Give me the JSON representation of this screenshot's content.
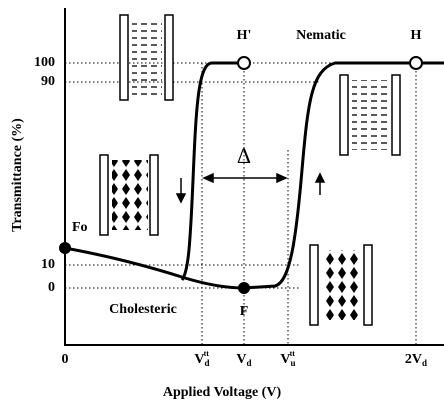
{
  "axes": {
    "y_label": "Transmittance (%)",
    "x_label": "Applied Voltage (V)",
    "y_ticks": [
      "100",
      "90",
      "10",
      "0"
    ],
    "x_ticks": [
      {
        "base": "0"
      },
      {
        "base": "V",
        "sub": "d",
        "sup": "tt"
      },
      {
        "base": "V",
        "sub": "d"
      },
      {
        "base": "V",
        "sub": "u",
        "sup": "tt"
      },
      {
        "base": "2V",
        "sub": "d"
      }
    ]
  },
  "labels": {
    "fo": "Fo",
    "f": "F",
    "h_prime": "H'",
    "h": "H",
    "nematic": "Nematic",
    "cholesteric": "Cholesteric",
    "delta": "Δ"
  }
}
